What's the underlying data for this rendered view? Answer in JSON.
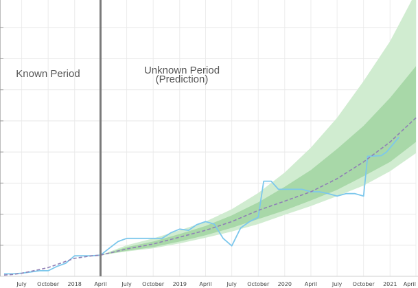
{
  "chart_data": {
    "type": "line",
    "title": "",
    "xlabel": "",
    "ylabel": "",
    "x_ticks": [
      "July",
      "October",
      "2018",
      "April",
      "July",
      "October",
      "2019",
      "April",
      "July",
      "October",
      "2020",
      "April",
      "July",
      "October",
      "2021",
      "April"
    ],
    "y_tick_labels_shown": false,
    "grid": true,
    "annotations": {
      "known_period": "Known Period",
      "unknown_period_line1": "Unknown Period",
      "unknown_period_line2": "(Prediction)"
    },
    "divider_at": "2018-04-01",
    "series": [
      {
        "kind": "actual",
        "color": "#7cc7ec",
        "points": [
          [
            "2017-05-01",
            0.4
          ],
          [
            "2017-06-01",
            0.4
          ],
          [
            "2017-07-01",
            0.5
          ],
          [
            "2017-08-01",
            0.7
          ],
          [
            "2017-09-01",
            0.9
          ],
          [
            "2017-10-01",
            0.9
          ],
          [
            "2017-11-01",
            1.6
          ],
          [
            "2017-12-01",
            2.1
          ],
          [
            "2018-01-01",
            3.3
          ],
          [
            "2018-02-01",
            3.3
          ],
          [
            "2018-03-01",
            3.3
          ],
          [
            "2018-04-01",
            3.4
          ],
          [
            "2018-05-01",
            4.5
          ],
          [
            "2018-06-01",
            5.6
          ],
          [
            "2018-07-01",
            6.1
          ],
          [
            "2018-08-01",
            6.1
          ],
          [
            "2018-09-01",
            6.1
          ],
          [
            "2018-10-01",
            6.1
          ],
          [
            "2018-11-01",
            6.1
          ],
          [
            "2018-12-01",
            7.0
          ],
          [
            "2019-01-01",
            7.6
          ],
          [
            "2019-02-01",
            7.4
          ],
          [
            "2019-03-01",
            8.3
          ],
          [
            "2019-04-01",
            8.8
          ],
          [
            "2019-05-01",
            8.4
          ],
          [
            "2019-06-01",
            6.1
          ],
          [
            "2019-07-01",
            4.9
          ],
          [
            "2019-08-01",
            7.8
          ],
          [
            "2019-09-01",
            8.8
          ],
          [
            "2019-10-01",
            9.5
          ],
          [
            "2019-10-20",
            15.3
          ],
          [
            "2019-11-15",
            15.3
          ],
          [
            "2019-12-10",
            14.0
          ],
          [
            "2020-01-01",
            14.0
          ],
          [
            "2020-02-01",
            14.0
          ],
          [
            "2020-03-01",
            14.0
          ],
          [
            "2020-04-01",
            13.6
          ],
          [
            "2020-05-01",
            13.6
          ],
          [
            "2020-06-01",
            13.3
          ],
          [
            "2020-07-01",
            12.9
          ],
          [
            "2020-08-01",
            13.3
          ],
          [
            "2020-09-01",
            13.3
          ],
          [
            "2020-10-01",
            12.9
          ],
          [
            "2020-10-15",
            19.3
          ],
          [
            "2020-12-01",
            19.4
          ],
          [
            "2020-12-20",
            20.0
          ],
          [
            "2021-02-01",
            22.4
          ]
        ]
      },
      {
        "kind": "prediction",
        "color": "#8f7fb5",
        "style": "dashed",
        "points": [
          [
            "2017-05-01",
            0.2
          ],
          [
            "2017-06-01",
            0.3
          ],
          [
            "2017-07-01",
            0.5
          ],
          [
            "2017-08-01",
            0.8
          ],
          [
            "2017-09-01",
            1.1
          ],
          [
            "2017-10-01",
            1.4
          ],
          [
            "2017-11-01",
            1.9
          ],
          [
            "2017-12-01",
            2.4
          ],
          [
            "2018-01-01",
            2.9
          ],
          [
            "2018-02-01",
            3.1
          ],
          [
            "2018-03-01",
            3.3
          ],
          [
            "2018-04-01",
            3.4
          ],
          [
            "2018-07-01",
            4.4
          ],
          [
            "2018-10-01",
            5.2
          ],
          [
            "2019-01-01",
            6.3
          ],
          [
            "2019-04-01",
            7.4
          ],
          [
            "2019-07-01",
            8.8
          ],
          [
            "2019-10-01",
            10.6
          ],
          [
            "2020-01-01",
            12.1
          ],
          [
            "2020-04-01",
            13.6
          ],
          [
            "2020-07-01",
            15.7
          ],
          [
            "2020-10-01",
            18.4
          ],
          [
            "2021-01-01",
            21.6
          ],
          [
            "2021-04-01",
            25.5
          ]
        ]
      }
    ],
    "bands": [
      {
        "level": "outer",
        "color": "#d0ecd0",
        "points": [
          [
            "2018-04-01",
            3.4,
            3.4
          ],
          [
            "2018-07-01",
            4.0,
            5.0
          ],
          [
            "2018-10-01",
            4.5,
            6.1
          ],
          [
            "2019-01-01",
            5.3,
            7.4
          ],
          [
            "2019-04-01",
            6.2,
            8.8
          ],
          [
            "2019-07-01",
            7.2,
            10.8
          ],
          [
            "2019-10-01",
            8.4,
            13.4
          ],
          [
            "2020-01-01",
            9.9,
            16.7
          ],
          [
            "2020-04-01",
            11.3,
            20.7
          ],
          [
            "2020-07-01",
            12.9,
            25.5
          ],
          [
            "2020-10-01",
            14.6,
            31.4
          ],
          [
            "2021-01-01",
            16.9,
            37.8
          ],
          [
            "2021-04-01",
            19.8,
            45.7
          ]
        ]
      },
      {
        "level": "inner",
        "color": "#a8d8a8",
        "points": [
          [
            "2018-04-01",
            3.4,
            3.4
          ],
          [
            "2018-07-01",
            4.1,
            4.7
          ],
          [
            "2018-10-01",
            4.7,
            5.6
          ],
          [
            "2019-01-01",
            5.6,
            6.8
          ],
          [
            "2019-04-01",
            6.6,
            8.1
          ],
          [
            "2019-07-01",
            7.8,
            9.8
          ],
          [
            "2019-10-01",
            9.2,
            11.9
          ],
          [
            "2020-01-01",
            10.6,
            14.4
          ],
          [
            "2020-04-01",
            12.2,
            17.1
          ],
          [
            "2020-07-01",
            13.9,
            20.5
          ],
          [
            "2020-10-01",
            16.1,
            24.2
          ],
          [
            "2021-01-01",
            18.4,
            28.7
          ],
          [
            "2021-04-01",
            21.6,
            33.8
          ]
        ]
      }
    ],
    "ylim": [
      0,
      45
    ]
  }
}
